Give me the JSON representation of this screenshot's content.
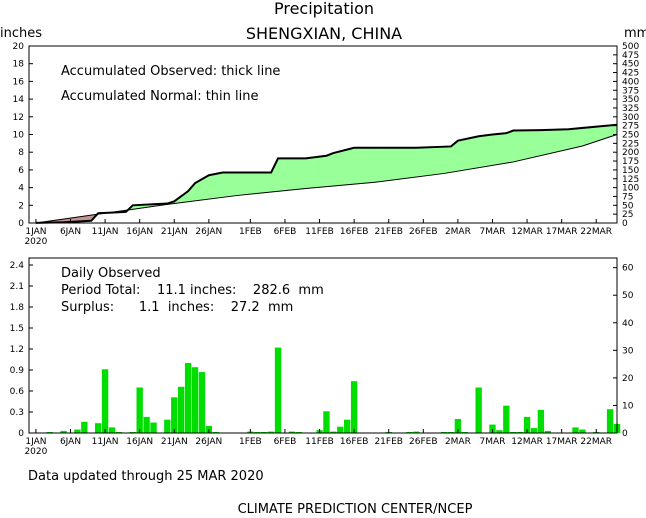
{
  "header": {
    "title": "Precipitation",
    "subtitle": "SHENGXIAN,  CHINA",
    "left_unit": "inches",
    "right_unit": "mm"
  },
  "top_panel": {
    "legend_line1": "Accumulated Observed: thick line",
    "legend_line2": "Accumulated Normal: thin line",
    "left_ticks": [
      "0",
      "2",
      "4",
      "6",
      "8",
      "10",
      "12",
      "14",
      "16",
      "18",
      "20"
    ],
    "right_ticks": [
      "0",
      "25",
      "50",
      "75",
      "100",
      "125",
      "150",
      "175",
      "200",
      "225",
      "250",
      "275",
      "300",
      "325",
      "350",
      "375",
      "400",
      "425",
      "450",
      "475",
      "500"
    ]
  },
  "bottom_panel": {
    "stats_title": "Daily Observed",
    "period_total": "Period Total:    11.1 inches:    282.6  mm",
    "surplus": "Surplus:      1.1  inches:    27.2  mm",
    "left_ticks": [
      "0",
      "0.3",
      "0.6",
      "0.9",
      "1.2",
      "1.5",
      "1.8",
      "2.1",
      "2.4"
    ],
    "right_ticks": [
      "0",
      "10",
      "20",
      "30",
      "40",
      "50",
      "60"
    ]
  },
  "x_ticks": [
    "1JAN",
    "6JAN",
    "11JAN",
    "16JAN",
    "21JAN",
    "26JAN",
    "1FEB",
    "6FEB",
    "11FEB",
    "16FEB",
    "21FEB",
    "26FEB",
    "2MAR",
    "7MAR",
    "12MAR",
    "17MAR",
    "22MAR"
  ],
  "x_year": "2020",
  "updated_text": "Data updated through 25 MAR 2020",
  "footer": "CLIMATE PREDICTION CENTER/NCEP",
  "colors": {
    "surplus_fill": "#99ff99",
    "deficit_fill": "#c49494",
    "bar": "#00dd00",
    "line": "#000000"
  },
  "chart_data": [
    {
      "type": "area",
      "title": "Precipitation",
      "ylabel": "inches",
      "y2label": "mm",
      "ylim": [
        0,
        20
      ],
      "x_unit": "day of 2020 (1 = 1 JAN)",
      "series": [
        {
          "name": "Accumulated Observed",
          "x": [
            1,
            5,
            9,
            10,
            14,
            15,
            20,
            21,
            23,
            24,
            26,
            28,
            31,
            35,
            36,
            40,
            43,
            44,
            47,
            52,
            55,
            56,
            61,
            62,
            65,
            67,
            69,
            70,
            74,
            78,
            85
          ],
          "y": [
            0.02,
            0.08,
            0.25,
            1.1,
            1.25,
            2.0,
            2.2,
            2.45,
            3.6,
            4.5,
            5.4,
            5.7,
            5.7,
            5.7,
            7.3,
            7.3,
            7.6,
            7.9,
            8.5,
            8.5,
            8.5,
            8.5,
            8.65,
            9.3,
            9.8,
            10.0,
            10.15,
            10.45,
            10.5,
            10.6,
            11.1
          ]
        },
        {
          "name": "Accumulated Normal",
          "x": [
            1,
            10,
            20,
            30,
            40,
            50,
            60,
            70,
            80,
            85
          ],
          "y": [
            0.0,
            1.0,
            2.1,
            3.1,
            3.9,
            4.6,
            5.6,
            6.9,
            8.7,
            10.0
          ]
        }
      ]
    },
    {
      "type": "bar",
      "title": "Daily Observed",
      "ylabel": "inches",
      "y2label": "mm",
      "ylim": [
        0,
        2.5
      ],
      "x_unit": "day of 2020 (1 = 1 JAN)",
      "x": [
        3,
        5,
        7,
        8,
        10,
        11,
        12,
        13,
        15,
        16,
        17,
        18,
        20,
        21,
        22,
        23,
        24,
        25,
        26,
        27,
        32,
        33,
        34,
        35,
        36,
        38,
        39,
        42,
        43,
        44,
        45,
        46,
        47,
        52,
        55,
        56,
        60,
        61,
        62,
        63,
        65,
        67,
        68,
        69,
        70,
        71,
        72,
        73,
        74,
        75,
        79,
        80,
        82,
        84,
        85
      ],
      "values": [
        0.01,
        0.03,
        0.05,
        0.16,
        0.14,
        0.91,
        0.08,
        0.01,
        0.01,
        0.65,
        0.23,
        0.15,
        0.19,
        0.51,
        0.66,
        1.0,
        0.94,
        0.87,
        0.1,
        0.01,
        0.02,
        0.01,
        0.01,
        0.02,
        1.22,
        0.02,
        0.01,
        0.04,
        0.31,
        0.02,
        0.09,
        0.19,
        0.74,
        0.01,
        0.01,
        0.02,
        0.01,
        0.01,
        0.2,
        0.01,
        0.65,
        0.12,
        0.04,
        0.39,
        0.01,
        0.01,
        0.23,
        0.07,
        0.33,
        0.03,
        0.08,
        0.05,
        0.01,
        0.34,
        0.13
      ]
    }
  ]
}
